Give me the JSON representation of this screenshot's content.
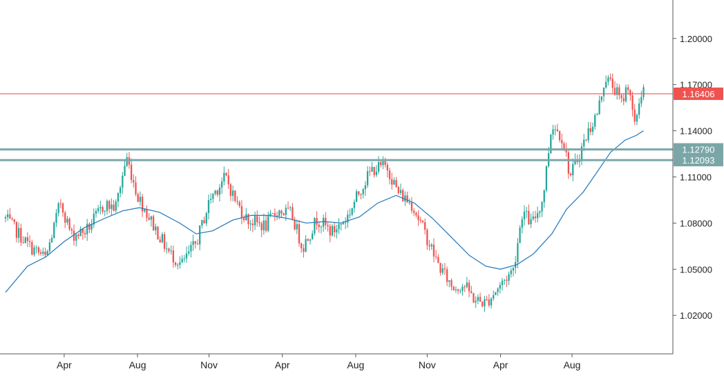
{
  "chart_data": {
    "type": "candlestick",
    "y_axis": {
      "ylim": [
        0.995,
        1.225
      ],
      "ticks": [
        "1.20000",
        "1.17000",
        "1.14000",
        "1.11000",
        "1.08000",
        "1.05000",
        "1.02000"
      ],
      "tick_values": [
        1.2,
        1.17,
        1.14,
        1.11,
        1.08,
        1.05,
        1.02
      ]
    },
    "x_axis": {
      "tick_labels": [
        "Apr",
        "Aug",
        "Nov",
        "Apr",
        "Aug",
        "Nov",
        "Apr",
        "Aug"
      ],
      "tick_positions": [
        3.2,
        7.2,
        11.1,
        15.1,
        19.1,
        23,
        27,
        30.9
      ]
    },
    "grid": false,
    "price_path": [
      [
        0,
        1.083
      ],
      [
        1.3,
        1.065
      ],
      [
        2.2,
        1.057
      ],
      [
        3.0,
        1.094
      ],
      [
        3.6,
        1.072
      ],
      [
        4.4,
        1.075
      ],
      [
        5.4,
        1.092
      ],
      [
        6.0,
        1.09
      ],
      [
        6.6,
        1.123
      ],
      [
        7.2,
        1.098
      ],
      [
        8.0,
        1.08
      ],
      [
        8.9,
        1.061
      ],
      [
        9.6,
        1.053
      ],
      [
        10.4,
        1.067
      ],
      [
        11.2,
        1.097
      ],
      [
        12.0,
        1.11
      ],
      [
        12.6,
        1.093
      ],
      [
        13.2,
        1.082
      ],
      [
        14.2,
        1.078
      ],
      [
        14.8,
        1.088
      ],
      [
        15.6,
        1.086
      ],
      [
        16.2,
        1.064
      ],
      [
        17.0,
        1.083
      ],
      [
        17.8,
        1.074
      ],
      [
        18.6,
        1.083
      ],
      [
        19.4,
        1.103
      ],
      [
        20.0,
        1.115
      ],
      [
        20.8,
        1.117
      ],
      [
        21.4,
        1.1
      ],
      [
        22.2,
        1.092
      ],
      [
        23.0,
        1.07
      ],
      [
        23.6,
        1.053
      ],
      [
        24.4,
        1.038
      ],
      [
        25.0,
        1.04
      ],
      [
        25.6,
        1.03
      ],
      [
        26.2,
        1.028
      ],
      [
        27.0,
        1.04
      ],
      [
        27.7,
        1.05
      ],
      [
        28.2,
        1.088
      ],
      [
        28.7,
        1.079
      ],
      [
        29.3,
        1.095
      ],
      [
        29.8,
        1.145
      ],
      [
        30.4,
        1.135
      ],
      [
        30.8,
        1.11
      ],
      [
        31.4,
        1.128
      ],
      [
        31.8,
        1.14
      ],
      [
        32.3,
        1.152
      ],
      [
        32.7,
        1.175
      ],
      [
        33.2,
        1.168
      ],
      [
        33.6,
        1.158
      ],
      [
        34.0,
        1.172
      ],
      [
        34.3,
        1.141
      ],
      [
        34.6,
        1.162
      ],
      [
        34.8,
        1.168
      ]
    ],
    "moving_average": [
      [
        0,
        1.035
      ],
      [
        1.2,
        1.052
      ],
      [
        2.2,
        1.058
      ],
      [
        3.2,
        1.068
      ],
      [
        4.3,
        1.077
      ],
      [
        5.4,
        1.083
      ],
      [
        6.4,
        1.088
      ],
      [
        7.3,
        1.09
      ],
      [
        8.4,
        1.087
      ],
      [
        9.5,
        1.08
      ],
      [
        10.4,
        1.073
      ],
      [
        11.3,
        1.075
      ],
      [
        12.4,
        1.082
      ],
      [
        13.4,
        1.085
      ],
      [
        14.4,
        1.085
      ],
      [
        15.4,
        1.083
      ],
      [
        16.4,
        1.08
      ],
      [
        17.4,
        1.081
      ],
      [
        18.3,
        1.08
      ],
      [
        19.3,
        1.084
      ],
      [
        20.3,
        1.093
      ],
      [
        21.3,
        1.098
      ],
      [
        22.3,
        1.093
      ],
      [
        23.3,
        1.083
      ],
      [
        24.3,
        1.071
      ],
      [
        25.3,
        1.059
      ],
      [
        26.2,
        1.052
      ],
      [
        27.0,
        1.05
      ],
      [
        27.9,
        1.053
      ],
      [
        28.8,
        1.06
      ],
      [
        29.8,
        1.073
      ],
      [
        30.6,
        1.089
      ],
      [
        31.5,
        1.1
      ],
      [
        32.2,
        1.112
      ],
      [
        33.0,
        1.126
      ],
      [
        33.8,
        1.134
      ],
      [
        34.4,
        1.137
      ],
      [
        34.8,
        1.14
      ]
    ],
    "x_range": [
      -0.3,
      36.4
    ],
    "horizontal_lines": [
      {
        "value": 1.16406,
        "label": "1.16406",
        "color": "#ef5350",
        "label_bg": "#ef5350",
        "thickness": "thin"
      },
      {
        "value": 1.1279,
        "label": "1.12790",
        "color": "#7aa6a8",
        "label_bg": "#7aa6a8",
        "thickness": "thick"
      },
      {
        "value": 1.12093,
        "label": "1.12093",
        "color": "#7aa6a8",
        "label_bg": "#7aa6a8",
        "thickness": "thick"
      }
    ],
    "colors": {
      "up": "#26a69a",
      "down": "#ef5350",
      "moving_average": "#2f7fbf",
      "axis": "#555555",
      "axis_text": "#222222"
    }
  }
}
